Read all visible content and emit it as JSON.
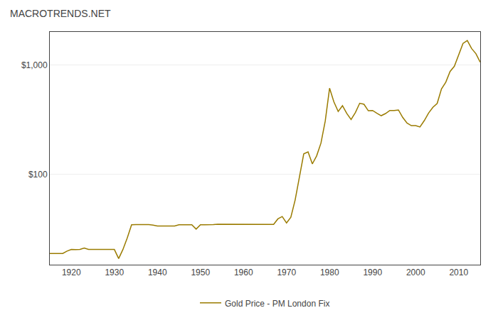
{
  "chart_data": {
    "type": "line",
    "title": "MACROTRENDS.NET",
    "x": [
      1915,
      1916,
      1917,
      1918,
      1919,
      1920,
      1921,
      1922,
      1923,
      1924,
      1925,
      1926,
      1927,
      1928,
      1929,
      1930,
      1931,
      1932,
      1933,
      1934,
      1935,
      1936,
      1937,
      1938,
      1939,
      1940,
      1941,
      1942,
      1943,
      1944,
      1945,
      1946,
      1947,
      1948,
      1949,
      1950,
      1951,
      1952,
      1953,
      1954,
      1955,
      1956,
      1957,
      1958,
      1959,
      1960,
      1961,
      1962,
      1963,
      1964,
      1965,
      1966,
      1967,
      1968,
      1969,
      1970,
      1971,
      1972,
      1973,
      1974,
      1975,
      1976,
      1977,
      1978,
      1979,
      1980,
      1981,
      1982,
      1983,
      1984,
      1985,
      1986,
      1987,
      1988,
      1989,
      1990,
      1991,
      1992,
      1993,
      1994,
      1995,
      1996,
      1997,
      1998,
      1999,
      2000,
      2001,
      2002,
      2003,
      2004,
      2005,
      2006,
      2007,
      2008,
      2009,
      2010,
      2011,
      2012,
      2013,
      2014,
      2015
    ],
    "series": [
      {
        "name": "Gold Price - PM London Fix",
        "color": "#9a7b00",
        "values": [
          18.99,
          18.99,
          18.99,
          18.99,
          19.95,
          20.68,
          20.58,
          20.66,
          21.32,
          20.69,
          20.64,
          20.63,
          20.64,
          20.66,
          20.63,
          20.65,
          17.06,
          20.69,
          26.33,
          34.69,
          34.84,
          34.87,
          34.79,
          34.85,
          34.42,
          33.85,
          33.85,
          33.85,
          33.85,
          33.85,
          34.71,
          34.71,
          34.71,
          34.71,
          31.69,
          34.72,
          34.72,
          34.6,
          34.84,
          35.04,
          35.03,
          34.99,
          34.95,
          35.1,
          35.1,
          35.27,
          35.25,
          35.23,
          35.09,
          35.1,
          35.12,
          35.13,
          34.95,
          39.31,
          41.28,
          36.02,
          40.62,
          58.42,
          97.39,
          154.0,
          160.86,
          124.74,
          147.84,
          193.22,
          307.8,
          612.56,
          460.03,
          375.67,
          424.35,
          360.48,
          317.26,
          367.66,
          446.46,
          436.94,
          381.44,
          383.51,
          362.11,
          343.82,
          359.77,
          384.0,
          383.79,
          387.81,
          331.02,
          294.24,
          278.88,
          279.11,
          271.04,
          309.73,
          363.38,
          409.72,
          444.74,
          603.46,
          695.39,
          871.96,
          972.35,
          1224.53,
          1571.52,
          1668.98,
          1411.23,
          1266.4,
          1060.0
        ]
      }
    ],
    "xlim": [
      1915,
      2015
    ],
    "ylim": [
      15,
      2000
    ],
    "xticks": [
      1920,
      1930,
      1940,
      1950,
      1960,
      1970,
      1980,
      1990,
      2000,
      2010
    ],
    "yticks": [
      {
        "value": 100,
        "label": "$100"
      },
      {
        "value": 1000,
        "label": "$1,000"
      }
    ],
    "log": "y",
    "grid": "y",
    "legend": "bottom"
  }
}
